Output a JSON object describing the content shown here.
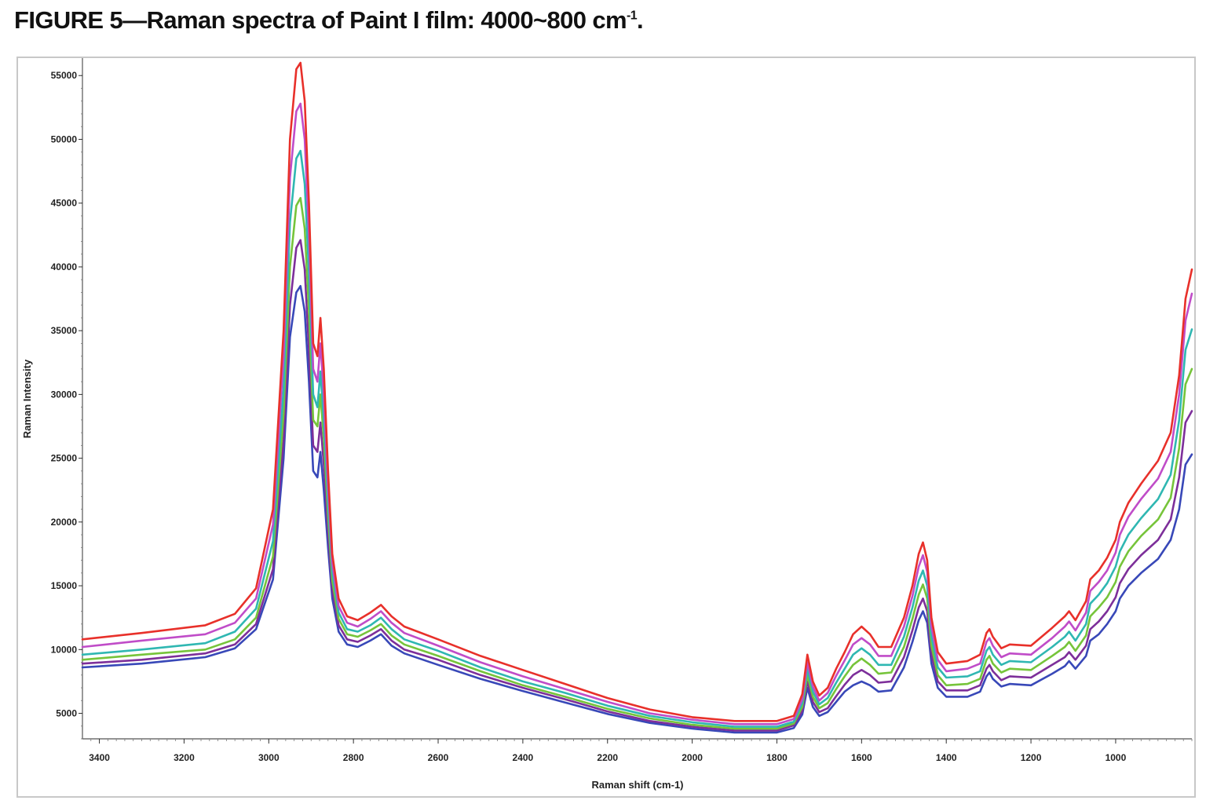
{
  "figure": {
    "title_main": "FIGURE 5—Raman spectra of Paint I film: 4000~800 cm",
    "title_sup": "-1",
    "title_end": "."
  },
  "chart_data": {
    "type": "line",
    "xlabel": "Raman shift (cm-1)",
    "ylabel": "Raman Intensity",
    "xlim": [
      3440,
      820
    ],
    "ylim": [
      3000,
      56000
    ],
    "x_reversed": true,
    "grid": false,
    "legend": "none",
    "xticks": [
      3400,
      3200,
      3000,
      2800,
      2600,
      2400,
      2200,
      2000,
      1800,
      1600,
      1400,
      1200,
      1000
    ],
    "yticks": [
      5000,
      10000,
      15000,
      20000,
      25000,
      30000,
      35000,
      40000,
      45000,
      50000,
      55000
    ],
    "x": [
      3440,
      3300,
      3150,
      3080,
      3030,
      2990,
      2965,
      2950,
      2935,
      2925,
      2915,
      2905,
      2895,
      2885,
      2878,
      2870,
      2860,
      2850,
      2835,
      2815,
      2790,
      2760,
      2735,
      2710,
      2680,
      2600,
      2500,
      2400,
      2300,
      2200,
      2100,
      2000,
      1900,
      1800,
      1760,
      1740,
      1728,
      1715,
      1700,
      1680,
      1660,
      1640,
      1620,
      1600,
      1580,
      1560,
      1530,
      1500,
      1480,
      1465,
      1455,
      1445,
      1435,
      1420,
      1400,
      1350,
      1320,
      1305,
      1298,
      1290,
      1270,
      1250,
      1200,
      1150,
      1120,
      1110,
      1095,
      1070,
      1060,
      1040,
      1020,
      1000,
      990,
      970,
      940,
      900,
      870,
      850,
      835,
      820
    ],
    "series": [
      {
        "color": "#e8302a",
        "values": [
          10800,
          11300,
          11900,
          12800,
          14800,
          21000,
          35000,
          50000,
          55500,
          56000,
          53000,
          45000,
          34000,
          33000,
          36000,
          32000,
          24000,
          17500,
          14000,
          12600,
          12300,
          12900,
          13500,
          12600,
          11800,
          10800,
          9500,
          8400,
          7300,
          6200,
          5300,
          4700,
          4400,
          4400,
          4800,
          6500,
          9600,
          7500,
          6400,
          7000,
          8500,
          9800,
          11200,
          11800,
          11200,
          10200,
          10200,
          12500,
          15000,
          17500,
          18400,
          17000,
          12500,
          9800,
          8900,
          9100,
          9600,
          11300,
          11600,
          11000,
          10100,
          10400,
          10300,
          11700,
          12600,
          13000,
          12300,
          13800,
          15500,
          16200,
          17200,
          18600,
          20000,
          21500,
          23000,
          24800,
          27000,
          31500,
          37500,
          39800
        ]
      },
      {
        "color": "#c04cc8",
        "values": [
          10200,
          10700,
          11200,
          12100,
          14000,
          19800,
          33000,
          47000,
          52200,
          52800,
          50000,
          42500,
          32000,
          31000,
          34000,
          30000,
          22800,
          16800,
          13400,
          12100,
          11800,
          12400,
          13000,
          12100,
          11300,
          10300,
          9000,
          7900,
          6900,
          5900,
          5000,
          4500,
          4150,
          4150,
          4550,
          6100,
          9000,
          7100,
          6000,
          6600,
          7950,
          9150,
          10400,
          10900,
          10400,
          9500,
          9500,
          11800,
          14200,
          16500,
          17400,
          16100,
          11800,
          9200,
          8300,
          8500,
          8900,
          10600,
          10900,
          10300,
          9400,
          9700,
          9600,
          10900,
          11800,
          12200,
          11500,
          12900,
          14600,
          15300,
          16200,
          17600,
          19000,
          20400,
          21800,
          23400,
          25500,
          30000,
          35800,
          37900
        ]
      },
      {
        "color": "#2fb7b2",
        "values": [
          9600,
          10000,
          10500,
          11400,
          13200,
          18500,
          30500,
          43500,
          48500,
          49100,
          46500,
          39500,
          30000,
          29000,
          31800,
          28000,
          21600,
          16100,
          12900,
          11600,
          11400,
          11900,
          12500,
          11600,
          10800,
          9900,
          8600,
          7500,
          6600,
          5600,
          4800,
          4300,
          3950,
          3950,
          4350,
          5800,
          8500,
          6700,
          5700,
          6200,
          7400,
          8500,
          9600,
          10100,
          9600,
          8800,
          8800,
          11000,
          13300,
          15400,
          16200,
          15000,
          11000,
          8600,
          7800,
          7900,
          8300,
          9900,
          10200,
          9600,
          8800,
          9100,
          9000,
          10200,
          11000,
          11400,
          10700,
          12000,
          13600,
          14300,
          15200,
          16500,
          17700,
          19000,
          20300,
          21800,
          23700,
          28000,
          33500,
          35100
        ]
      },
      {
        "color": "#76c43a",
        "values": [
          9200,
          9600,
          10000,
          10800,
          12500,
          17300,
          28500,
          40000,
          44800,
          45400,
          43000,
          36500,
          28000,
          27500,
          30000,
          26500,
          20500,
          15400,
          12400,
          11200,
          11000,
          11500,
          12000,
          11100,
          10400,
          9500,
          8300,
          7200,
          6300,
          5350,
          4600,
          4100,
          3800,
          3800,
          4200,
          5500,
          8000,
          6300,
          5400,
          5800,
          6900,
          7900,
          8800,
          9300,
          8800,
          8100,
          8200,
          10200,
          12400,
          14300,
          15100,
          14000,
          10300,
          8000,
          7200,
          7300,
          7700,
          9200,
          9500,
          8900,
          8200,
          8500,
          8400,
          9500,
          10200,
          10600,
          9900,
          11100,
          12600,
          13300,
          14100,
          15300,
          16500,
          17700,
          18900,
          20200,
          21900,
          25800,
          30800,
          32000
        ]
      },
      {
        "color": "#7d2f9a",
        "values": [
          8900,
          9200,
          9700,
          10400,
          12000,
          16300,
          26500,
          37000,
          41500,
          42100,
          39800,
          33500,
          26000,
          25500,
          27800,
          24500,
          19300,
          14700,
          11900,
          10800,
          10600,
          11100,
          11600,
          10700,
          10000,
          9200,
          8000,
          7000,
          6100,
          5150,
          4400,
          3950,
          3650,
          3650,
          4050,
          5200,
          7500,
          5900,
          5100,
          5400,
          6350,
          7250,
          8000,
          8400,
          8000,
          7400,
          7500,
          9400,
          11500,
          13300,
          14000,
          13000,
          9600,
          7500,
          6800,
          6800,
          7200,
          8500,
          8800,
          8300,
          7600,
          7900,
          7800,
          8800,
          9400,
          9800,
          9200,
          10300,
          11600,
          12200,
          13000,
          14100,
          15200,
          16300,
          17400,
          18600,
          20200,
          23500,
          27800,
          28700
        ]
      },
      {
        "color": "#3848b8",
        "values": [
          8600,
          8900,
          9400,
          10100,
          11600,
          15500,
          25000,
          34500,
          38000,
          38500,
          36500,
          31000,
          24000,
          23500,
          25500,
          22500,
          18000,
          14000,
          11400,
          10400,
          10200,
          10700,
          11200,
          10300,
          9700,
          8800,
          7700,
          6750,
          5850,
          4950,
          4250,
          3800,
          3500,
          3500,
          3850,
          4900,
          7000,
          5500,
          4800,
          5100,
          5900,
          6700,
          7200,
          7500,
          7200,
          6700,
          6800,
          8600,
          10600,
          12300,
          13000,
          12100,
          8900,
          7000,
          6300,
          6300,
          6700,
          7900,
          8200,
          7700,
          7100,
          7300,
          7200,
          8100,
          8700,
          9100,
          8500,
          9500,
          10700,
          11200,
          12000,
          13000,
          14000,
          15000,
          16000,
          17100,
          18600,
          21000,
          24500,
          25300
        ]
      }
    ]
  }
}
